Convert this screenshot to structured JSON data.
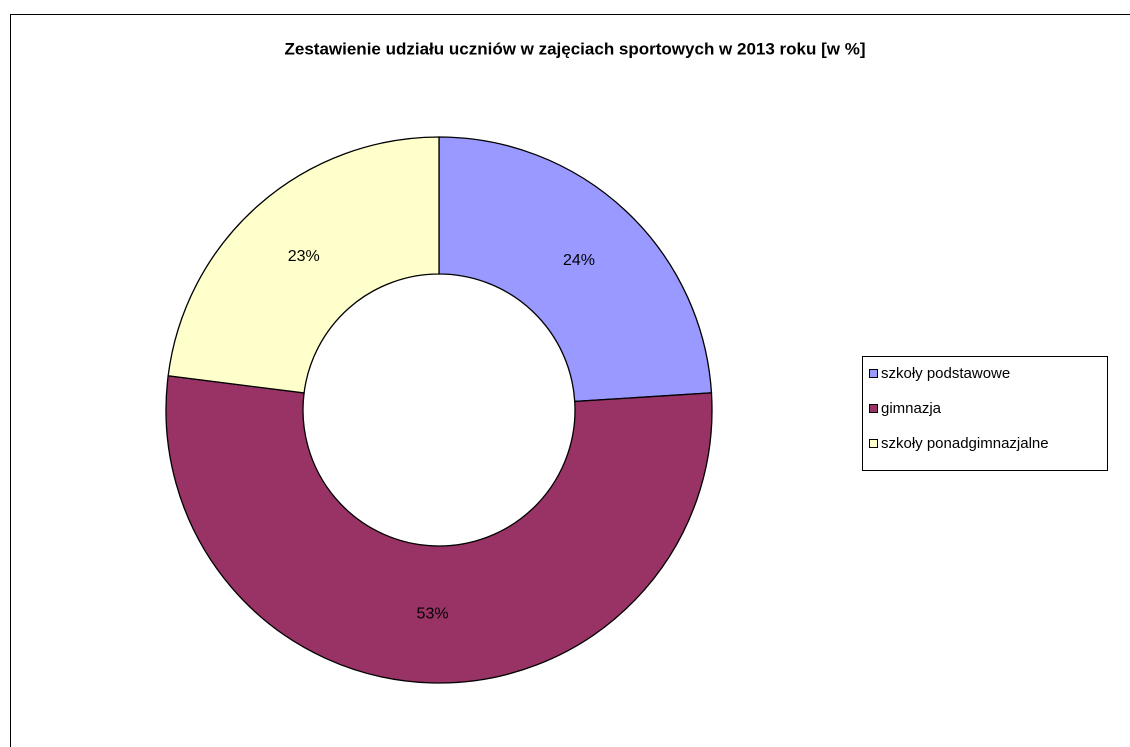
{
  "chart_data": {
    "type": "donut",
    "title": "Zestawienie udziału uczniów w zajęciach sportowych w 2013 roku [w %]",
    "categories": [
      "szkoły podstawowe",
      "gimnazja",
      "szkoły ponadgimnazjalne"
    ],
    "values": [
      24,
      53,
      23
    ],
    "value_labels": [
      "24%",
      "53%",
      "23%"
    ],
    "colors": [
      "#9999ff",
      "#993366",
      "#ffffcc"
    ],
    "legend": "right"
  }
}
